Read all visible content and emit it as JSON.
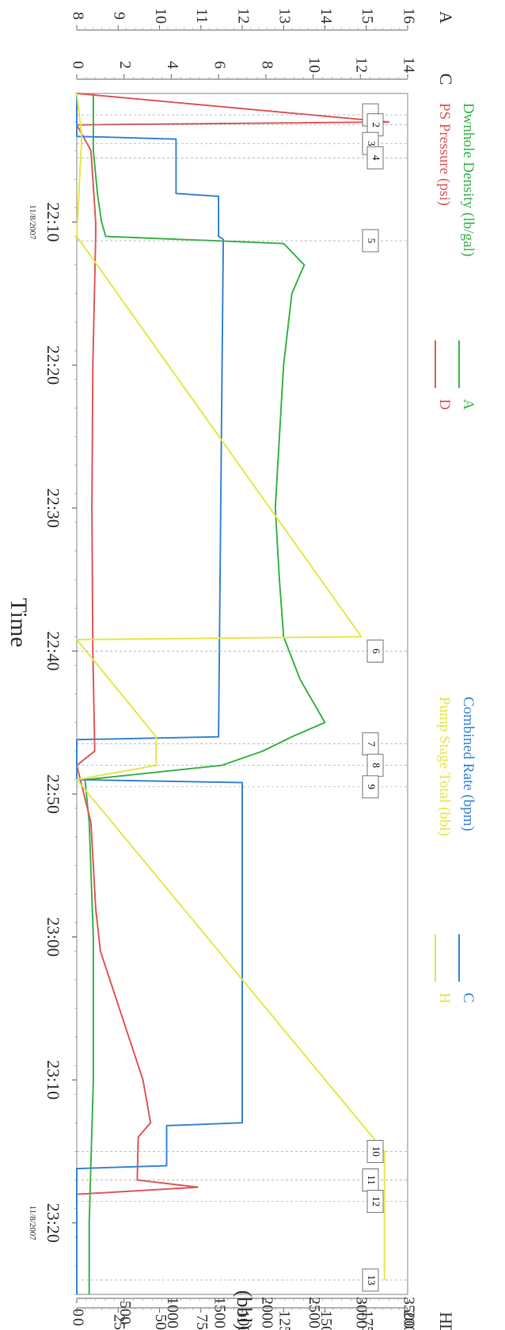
{
  "chart_data": {
    "type": "line",
    "xlabel": "Time",
    "date_label": "11/8/2007",
    "time_ticks": [
      "22:10",
      "22:20",
      "22:30",
      "22:40",
      "22:50",
      "23:00",
      "23:10",
      "23:20"
    ],
    "time_range_minutes": [
      "22:01",
      "23:25"
    ],
    "legend": [
      {
        "key": "A",
        "label": "Dwnhole Density (lb/gal)",
        "color": "#3cb44b"
      },
      {
        "key": "D",
        "label": "PS Pressure (psi)",
        "color": "#e05a5a"
      },
      {
        "key": "C",
        "label": "Combined Rate (bpm)",
        "color": "#3b86d6"
      },
      {
        "key": "H",
        "label": "Pump Stage Total (bbl)",
        "color": "#e6e64a"
      }
    ],
    "axes": {
      "A": {
        "label": "A",
        "min": 8,
        "max": 16,
        "ticks": [
          "8",
          "9",
          "10",
          "11",
          "12",
          "13",
          "14",
          "15",
          "16"
        ]
      },
      "C": {
        "label": "C",
        "min": 0,
        "max": 14,
        "ticks": [
          "0",
          "2",
          "4",
          "6",
          "8",
          "10",
          "12",
          "14"
        ]
      },
      "D": {
        "label": "D",
        "min": 0,
        "max": 3500,
        "ticks": [
          "0",
          "500",
          "1000",
          "1500",
          "2000",
          "2500",
          "3000",
          "3500"
        ]
      },
      "H": {
        "label": "H",
        "min": 0,
        "max": 200,
        "ticks": [
          "0",
          "25",
          "50",
          "75",
          "100",
          "125",
          "150",
          "175",
          "200"
        ],
        "unit": "(bbl)"
      }
    },
    "series": [
      {
        "name": "Dwnhole Density (lb/gal)",
        "axis": "A",
        "color": "#3cb44b",
        "points": [
          [
            "22:01",
            8.4
          ],
          [
            "22:05",
            8.4
          ],
          [
            "22:08",
            8.5
          ],
          [
            "22:10",
            8.6
          ],
          [
            "22:11",
            8.7
          ],
          [
            "22:11.5",
            13.0
          ],
          [
            "22:13",
            13.5
          ],
          [
            "22:15",
            13.2
          ],
          [
            "22:20",
            13.0
          ],
          [
            "22:25",
            12.9
          ],
          [
            "22:30",
            12.8
          ],
          [
            "22:35",
            12.9
          ],
          [
            "22:39",
            13.0
          ],
          [
            "22:42",
            13.4
          ],
          [
            "22:45",
            14.0
          ],
          [
            "22:46",
            13.2
          ],
          [
            "22:47",
            12.5
          ],
          [
            "22:48",
            11.5
          ],
          [
            "22:49",
            8.2
          ],
          [
            "22:52",
            8.3
          ],
          [
            "23:00",
            8.4
          ],
          [
            "23:10",
            8.4
          ],
          [
            "23:20",
            8.3
          ],
          [
            "23:25",
            8.3
          ]
        ]
      },
      {
        "name": "PS Pressure (psi)",
        "axis": "D",
        "color": "#e05a5a",
        "points": [
          [
            "22:01",
            0
          ],
          [
            "22:03",
            3300
          ],
          [
            "22:03.2",
            0
          ],
          [
            "22:05",
            150
          ],
          [
            "22:10",
            200
          ],
          [
            "22:11",
            200
          ],
          [
            "22:20",
            170
          ],
          [
            "22:30",
            160
          ],
          [
            "22:40",
            170
          ],
          [
            "22:47",
            190
          ],
          [
            "22:48",
            0
          ],
          [
            "22:52",
            150
          ],
          [
            "22:58",
            200
          ],
          [
            "23:01",
            250
          ],
          [
            "23:10",
            700
          ],
          [
            "23:13",
            780
          ],
          [
            "23:14",
            650
          ],
          [
            "23:17",
            640
          ],
          [
            "23:17.5",
            1280
          ],
          [
            "23:18",
            0
          ],
          [
            "23:25",
            0
          ]
        ]
      },
      {
        "name": "Combined Rate (bpm)",
        "axis": "C",
        "color": "#3b86d6",
        "points": [
          [
            "22:01",
            0
          ],
          [
            "22:04",
            0
          ],
          [
            "22:04.2",
            4.2
          ],
          [
            "22:08",
            4.2
          ],
          [
            "22:08.2",
            6.0
          ],
          [
            "22:11",
            6.0
          ],
          [
            "22:11.2",
            6.2
          ],
          [
            "22:46",
            6.0
          ],
          [
            "22:46.2",
            0
          ],
          [
            "22:49",
            0
          ],
          [
            "22:49.2",
            7.0
          ],
          [
            "23:13",
            7.0
          ],
          [
            "23:13.2",
            3.8
          ],
          [
            "23:16",
            3.8
          ],
          [
            "23:16.2",
            0
          ],
          [
            "23:25",
            0
          ]
        ]
      },
      {
        "name": "Pump Stage Total (bbl)",
        "axis": "H",
        "color": "#e6e64a",
        "points": [
          [
            "22:01",
            0
          ],
          [
            "22:04",
            3
          ],
          [
            "22:11",
            0
          ],
          [
            "22:39",
            172
          ],
          [
            "22:39.2",
            0
          ],
          [
            "22:46",
            48
          ],
          [
            "22:48",
            48
          ],
          [
            "22:49",
            0
          ],
          [
            "23:15",
            186
          ],
          [
            "23:24",
            186
          ]
        ]
      }
    ],
    "markers": [
      {
        "label": "1",
        "time": "22:02.5"
      },
      {
        "label": "2",
        "time": "22:03.2"
      },
      {
        "label": "3",
        "time": "22:04.5"
      },
      {
        "label": "4",
        "time": "22:05.5"
      },
      {
        "label": "5",
        "time": "22:11.3"
      },
      {
        "label": "6",
        "time": "22:40"
      },
      {
        "label": "7",
        "time": "22:46.5"
      },
      {
        "label": "8",
        "time": "22:48"
      },
      {
        "label": "9",
        "time": "22:49.5"
      },
      {
        "label": "10",
        "time": "23:15"
      },
      {
        "label": "11",
        "time": "23:17"
      },
      {
        "label": "12",
        "time": "23:18.5"
      },
      {
        "label": "13",
        "time": "23:24"
      }
    ]
  }
}
